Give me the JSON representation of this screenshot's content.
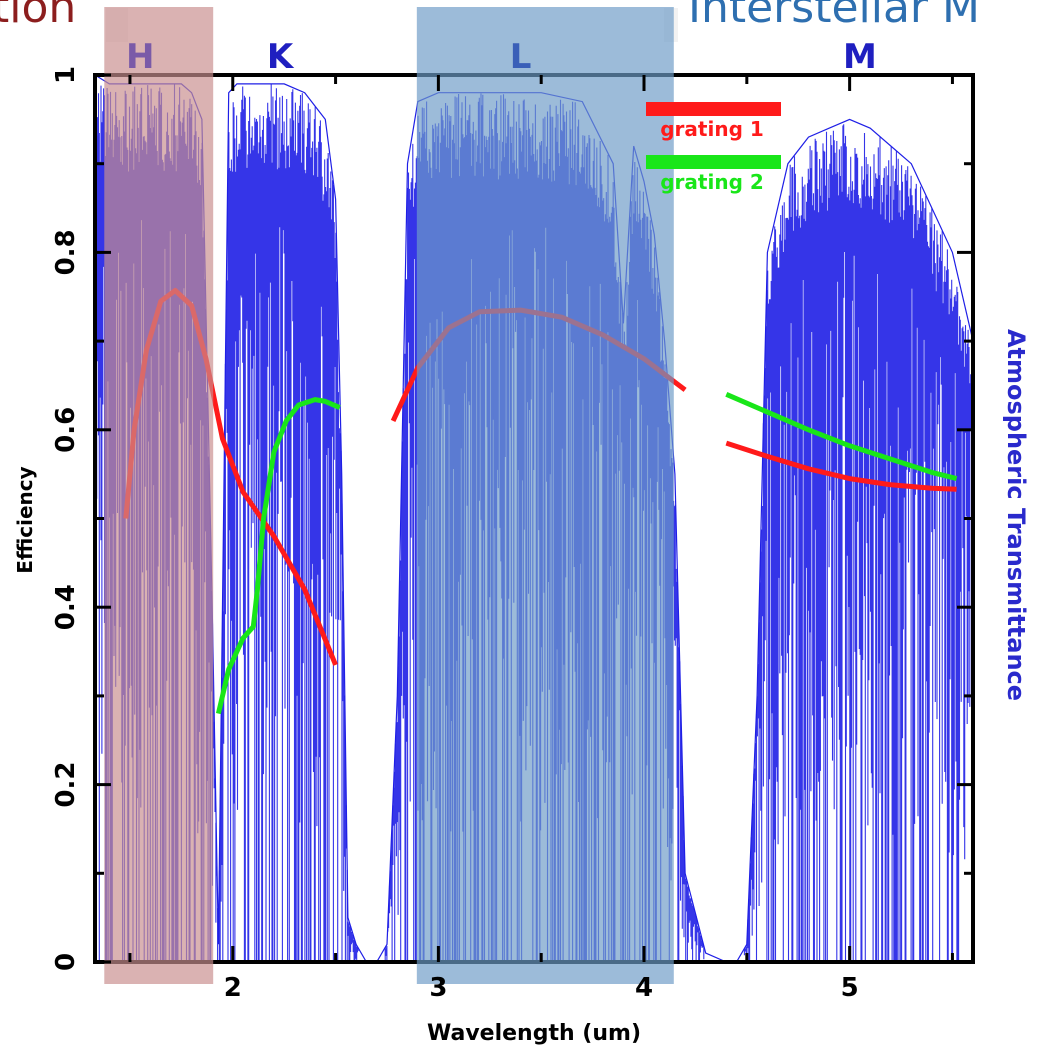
{
  "slide": {
    "left_text": "tion",
    "right_text": "Interstellar M"
  },
  "chart_data": {
    "type": "line",
    "xlabel": "Wavelength (um)",
    "ylabel_left": "Efficiency",
    "ylabel_right": "Atmospheric Transmittance",
    "xlim": [
      1.33,
      5.6
    ],
    "ylim": [
      0,
      1
    ],
    "x_ticks": [
      2,
      3,
      4,
      5
    ],
    "y_ticks": [
      0,
      0.2,
      0.4,
      0.6,
      0.8,
      1
    ],
    "x_tick_labels": [
      "2",
      "3",
      "4",
      "5"
    ],
    "y_tick_labels": [
      "0",
      "0.2",
      "0.4",
      "0.6",
      "0.8",
      "1"
    ],
    "legend_position": "top-right",
    "series": [
      {
        "name": "grating 1",
        "color": "#ff1a1a",
        "segments": [
          {
            "x": [
              1.48,
              1.52,
              1.58,
              1.65,
              1.72,
              1.8,
              1.87,
              1.95,
              2.05,
              2.2,
              2.35,
              2.5
            ],
            "y": [
              0.5,
              0.6,
              0.69,
              0.745,
              0.757,
              0.74,
              0.68,
              0.59,
              0.53,
              0.48,
              0.42,
              0.335
            ]
          },
          {
            "x": [
              2.78,
              2.9,
              3.05,
              3.2,
              3.4,
              3.6,
              3.8,
              4.0,
              4.2
            ],
            "y": [
              0.61,
              0.67,
              0.715,
              0.733,
              0.735,
              0.727,
              0.707,
              0.68,
              0.645
            ]
          },
          {
            "x": [
              4.4,
              4.6,
              4.8,
              5.0,
              5.2,
              5.4,
              5.52
            ],
            "y": [
              0.585,
              0.57,
              0.556,
              0.545,
              0.538,
              0.534,
              0.533
            ]
          }
        ]
      },
      {
        "name": "grating 2",
        "color": "#19e619",
        "segments": [
          {
            "x": [
              1.93,
              1.98,
              2.05,
              2.1,
              2.12,
              2.15,
              2.2,
              2.26,
              2.32,
              2.4,
              2.45,
              2.52
            ],
            "y": [
              0.28,
              0.33,
              0.365,
              0.378,
              0.42,
              0.5,
              0.575,
              0.61,
              0.628,
              0.634,
              0.632,
              0.625
            ]
          },
          {
            "x": [
              4.4,
              4.6,
              4.8,
              5.0,
              5.2,
              5.4,
              5.52
            ],
            "y": [
              0.64,
              0.62,
              0.6,
              0.582,
              0.567,
              0.552,
              0.545
            ]
          }
        ]
      },
      {
        "name": "Atmospheric Transmittance",
        "color": "#1f1fe6",
        "envelope": {
          "x": [
            1.33,
            1.4,
            1.48,
            1.55,
            1.65,
            1.75,
            1.8,
            1.85,
            1.9,
            1.93,
            1.98,
            2.02,
            2.07,
            2.1,
            2.15,
            2.25,
            2.35,
            2.45,
            2.5,
            2.53,
            2.56,
            2.6,
            2.65,
            2.7,
            2.75,
            2.8,
            2.85,
            2.9,
            3.0,
            3.1,
            3.3,
            3.5,
            3.7,
            3.85,
            3.9,
            3.95,
            4.0,
            4.05,
            4.1,
            4.15,
            4.2,
            4.3,
            4.4,
            4.45,
            4.5,
            4.55,
            4.6,
            4.7,
            4.8,
            4.9,
            5.0,
            5.1,
            5.2,
            5.3,
            5.4,
            5.5,
            5.6
          ],
          "y": [
            1.0,
            0.99,
            0.99,
            0.99,
            0.99,
            0.99,
            0.98,
            0.95,
            0.4,
            0.02,
            0.98,
            0.99,
            0.99,
            0.99,
            0.99,
            0.99,
            0.98,
            0.95,
            0.86,
            0.55,
            0.05,
            0.02,
            0.0,
            0.0,
            0.02,
            0.3,
            0.9,
            0.97,
            0.98,
            0.98,
            0.98,
            0.98,
            0.97,
            0.9,
            0.72,
            0.92,
            0.88,
            0.82,
            0.7,
            0.55,
            0.1,
            0.01,
            0.0,
            0.0,
            0.02,
            0.3,
            0.8,
            0.9,
            0.93,
            0.94,
            0.95,
            0.94,
            0.92,
            0.9,
            0.85,
            0.8,
            0.7
          ]
        }
      }
    ],
    "bands": [
      {
        "label": "H",
        "x_range": [
          1.38,
          1.9
        ],
        "color": "#c98f8f"
      },
      {
        "label": "K",
        "x_range": null,
        "color": "#1f1fe6"
      },
      {
        "label": "L",
        "x_range": [
          2.9,
          4.14
        ],
        "color": "#6e9cc8"
      },
      {
        "label": "M",
        "x_range": null,
        "color": "#1f1fe6"
      }
    ],
    "band_label_x": {
      "H": 1.55,
      "K": 2.23,
      "L": 3.4,
      "M": 5.05
    }
  }
}
